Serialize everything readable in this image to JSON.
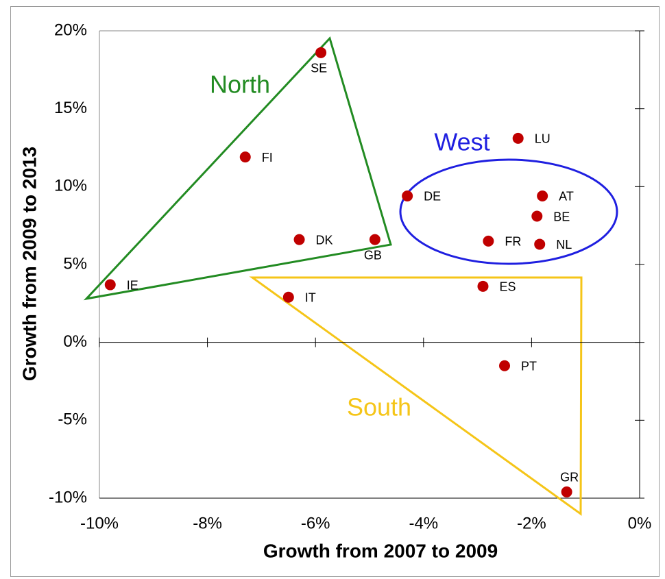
{
  "chart_data": {
    "type": "scatter",
    "xlabel": "Growth from 2007 to 2009",
    "ylabel": "Growth from 2009 to 2013",
    "x": [
      -5.9,
      -7.3,
      -9.8,
      -6.3,
      -4.9,
      -4.3,
      -2.25,
      -1.8,
      -1.9,
      -2.8,
      -1.85,
      -2.9,
      -6.5,
      -2.5,
      -1.35
    ],
    "values": [
      18.6,
      11.9,
      3.7,
      6.6,
      6.6,
      9.4,
      13.1,
      9.4,
      8.1,
      6.5,
      6.3,
      3.6,
      2.9,
      -1.5,
      -9.6
    ],
    "point_labels": [
      "SE",
      "FI",
      "IE",
      "DK",
      "GB",
      "DE",
      "LU",
      "AT",
      "BE",
      "FR",
      "NL",
      "ES",
      "IT",
      "PT",
      "GR"
    ],
    "color": "#c00000",
    "xlim": [
      -10,
      0
    ],
    "xticks": [
      {
        "value": -10,
        "label": "-10%"
      },
      {
        "value": -8,
        "label": "-8%"
      },
      {
        "value": -6,
        "label": "-6%"
      },
      {
        "value": -4,
        "label": "-4%"
      },
      {
        "value": -2,
        "label": "-2%"
      },
      {
        "value": 0,
        "label": "0%"
      }
    ],
    "ylim": [
      -10,
      20
    ],
    "yticks": [
      {
        "value": -10,
        "label": "-10%"
      },
      {
        "value": -5,
        "label": "-5%"
      },
      {
        "value": 0,
        "label": "0%"
      },
      {
        "value": 5,
        "label": "5%"
      },
      {
        "value": 10,
        "label": "10%"
      },
      {
        "value": 15,
        "label": "15%"
      },
      {
        "value": 20,
        "label": "20%"
      }
    ],
    "annotations": [
      "North",
      "West",
      "South"
    ]
  }
}
